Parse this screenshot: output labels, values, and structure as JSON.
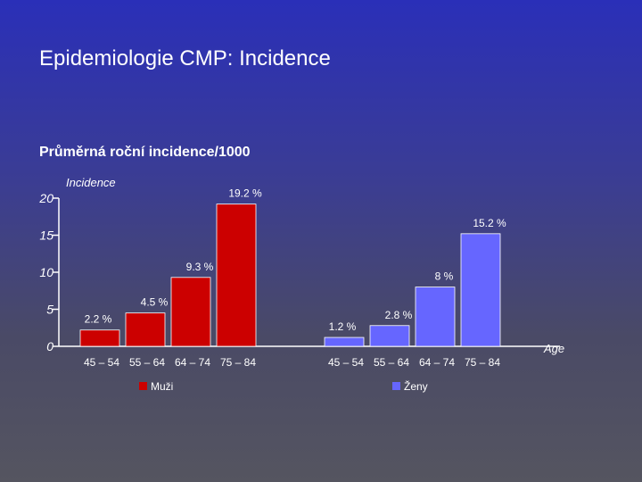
{
  "title": "Epidemiologie CMP: Incidence",
  "subtitle": "Průměrná roční incidence/1000",
  "chart_data": {
    "type": "bar",
    "ylabel": "Incidence",
    "xlabel": "Age",
    "ylim": [
      0,
      20
    ],
    "yticks": [
      0,
      5,
      10,
      15,
      20
    ],
    "categories": [
      "45 – 54",
      "55 – 64",
      "64 – 74",
      "75 – 84"
    ],
    "series": [
      {
        "name": "Muži",
        "color": "#cc0000",
        "values": [
          2.2,
          4.5,
          9.3,
          19.2
        ],
        "labels": [
          "2.2 %",
          "4.5 %",
          "9.3 %",
          "19.2 %"
        ]
      },
      {
        "name": "Ženy",
        "color": "#6666ff",
        "values": [
          1.2,
          2.8,
          8,
          15.2
        ],
        "labels": [
          "1.2 %",
          "2.8 %",
          "8 %",
          "15.2 %"
        ]
      }
    ]
  }
}
